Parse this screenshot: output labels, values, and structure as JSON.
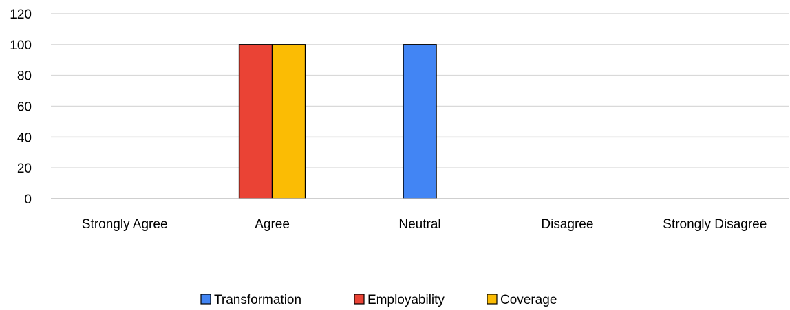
{
  "chart_data": {
    "type": "bar",
    "categories": [
      "Strongly Agree",
      "Agree",
      "Neutral",
      "Disagree",
      "Strongly Disagree"
    ],
    "series": [
      {
        "name": "Transformation",
        "color": "#4285F4",
        "values": [
          0,
          0,
          100,
          0,
          0
        ]
      },
      {
        "name": "Employability",
        "color": "#EA4335",
        "values": [
          0,
          100,
          0,
          0,
          0
        ]
      },
      {
        "name": "Coverage",
        "color": "#FBBC04",
        "values": [
          0,
          100,
          0,
          0,
          0
        ]
      }
    ],
    "ylim": [
      0,
      120
    ],
    "yticks": [
      0,
      20,
      40,
      60,
      80,
      100,
      120
    ],
    "grid": true,
    "legend_position": "bottom"
  }
}
